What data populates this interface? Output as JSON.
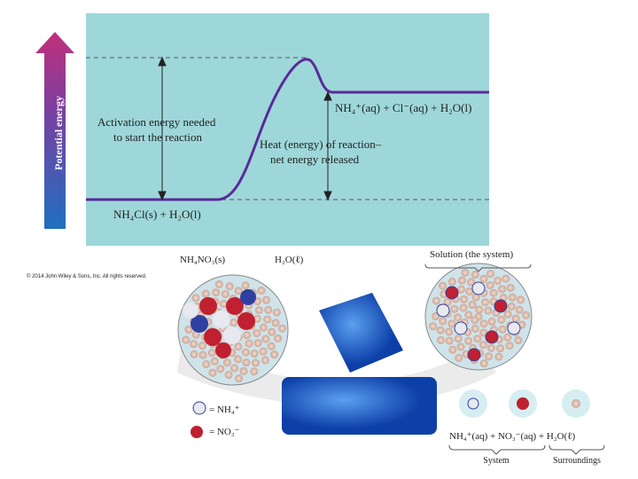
{
  "energy_diagram": {
    "axis_label": "Potential energy",
    "activation_label": [
      "Activation energy needed",
      "to start the reaction"
    ],
    "heat_label": [
      "Heat (energy) of reaction–",
      "net energy released"
    ],
    "product_label": "NH₄⁺(aq) + Cl⁻(aq) + H₂O(l)",
    "reactant_label": "NH₄Cl(s) + H₂O(l)"
  },
  "copyright": "© 2014 John Wiley & Sons, Inc. All rights reserved.",
  "illustration": {
    "solid_label": "NH₄NO₃(s)",
    "water_label": "H₂O(ℓ)",
    "solution_label": "Solution (the system)",
    "key": [
      "= NH₄⁺",
      "= NO₃⁻"
    ],
    "equation": "NH₄⁺(aq) + NO₃⁻(aq) + H₂O(ℓ)",
    "system_label": "System",
    "surroundings_label": "Surroundings"
  }
}
